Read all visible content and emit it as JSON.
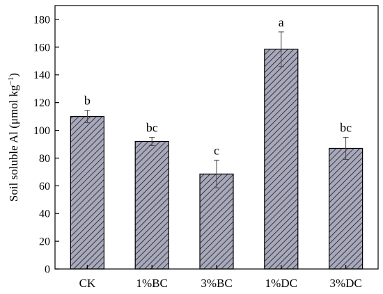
{
  "chart_data": {
    "type": "bar",
    "title": "",
    "xlabel": "",
    "ylabel": "Soil soluble Al (μmol kg",
    "ylabel_sup": "−1",
    "ylabel_close": ")",
    "categories": [
      "CK",
      "1%BC",
      "3%BC",
      "1%DC",
      "3%DC"
    ],
    "values": [
      110,
      92,
      68.5,
      158.5,
      87
    ],
    "errors": [
      4.5,
      3,
      10,
      12.5,
      8
    ],
    "significance": [
      "b",
      "bc",
      "c",
      "a",
      "bc"
    ],
    "ylim": [
      0,
      190
    ],
    "yticks": [
      0,
      20,
      40,
      60,
      80,
      100,
      120,
      140,
      160,
      180
    ],
    "grid": false,
    "legend": "none",
    "bar_fill": "#a8a8bc",
    "bar_hatch": "diagonal",
    "bar_stroke": "#000000"
  }
}
